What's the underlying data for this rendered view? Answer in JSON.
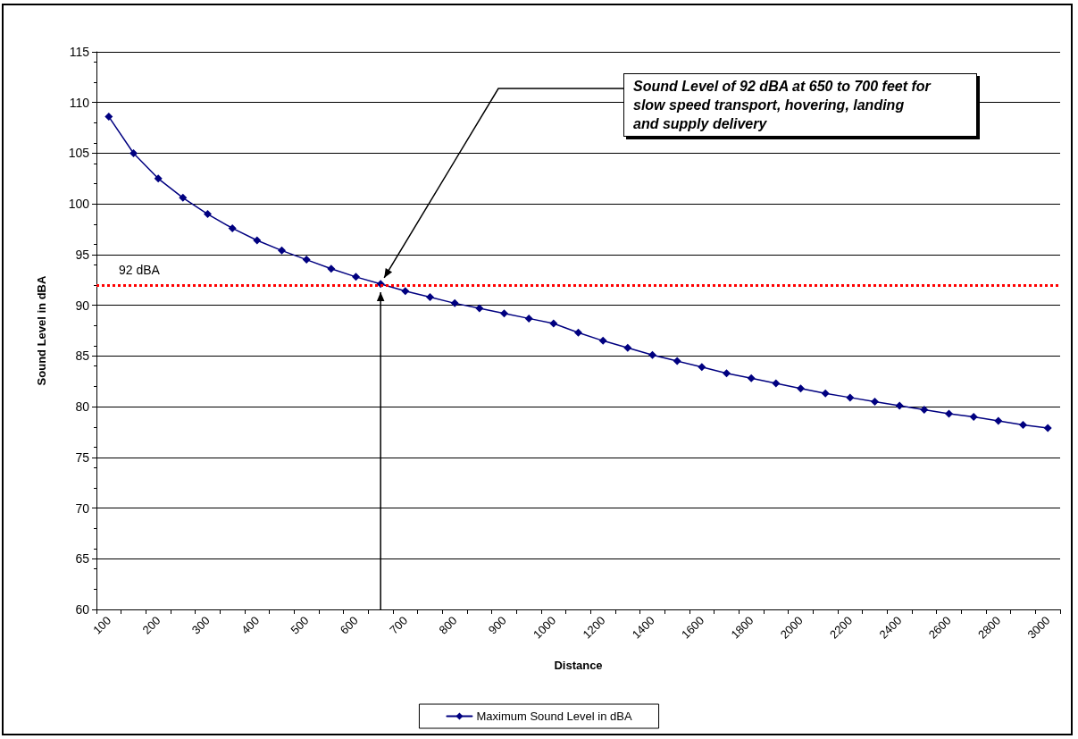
{
  "chart_data": {
    "type": "line",
    "xlabel": "Distance",
    "ylabel": "Sound Level in dBA",
    "categories": [
      "100",
      null,
      "200",
      null,
      "300",
      null,
      "400",
      null,
      "500",
      null,
      "600",
      null,
      "700",
      null,
      "800",
      null,
      "900",
      null,
      "1000",
      null,
      "1200",
      null,
      "1400",
      null,
      "1600",
      null,
      "1800",
      null,
      "2000",
      null,
      "2200",
      null,
      "2400",
      null,
      "2600",
      null,
      "2800",
      null,
      "3000"
    ],
    "series": [
      {
        "name": "Maximum Sound Level in dBA",
        "color": "#000080",
        "values": [
          108.6,
          105.0,
          102.5,
          100.6,
          99.0,
          97.6,
          96.4,
          95.4,
          94.5,
          93.6,
          92.8,
          92.1,
          91.4,
          90.8,
          90.2,
          89.7,
          89.2,
          88.7,
          88.2,
          87.3,
          86.5,
          85.8,
          85.1,
          84.5,
          83.9,
          83.3,
          82.8,
          82.3,
          81.8,
          81.3,
          80.9,
          80.5,
          80.1,
          79.7,
          79.3,
          79.0,
          78.6,
          78.2,
          77.9
        ]
      }
    ],
    "ylim": [
      60,
      115
    ],
    "yticks": [
      60,
      65,
      70,
      75,
      80,
      85,
      90,
      95,
      100,
      105,
      110,
      115
    ],
    "ref_lines": [
      {
        "axis": "y",
        "value": 92,
        "label": "92 dBA",
        "color": "#ff0000",
        "line_style": "dotted"
      }
    ],
    "annotations": [
      "Sound Level of 92 dBA at 650 to 700 feet for slow speed transport, hovering, landing and supply delivery"
    ],
    "grid": "y",
    "legend": "bottom",
    "marker": "diamond",
    "line_style": "solid"
  }
}
